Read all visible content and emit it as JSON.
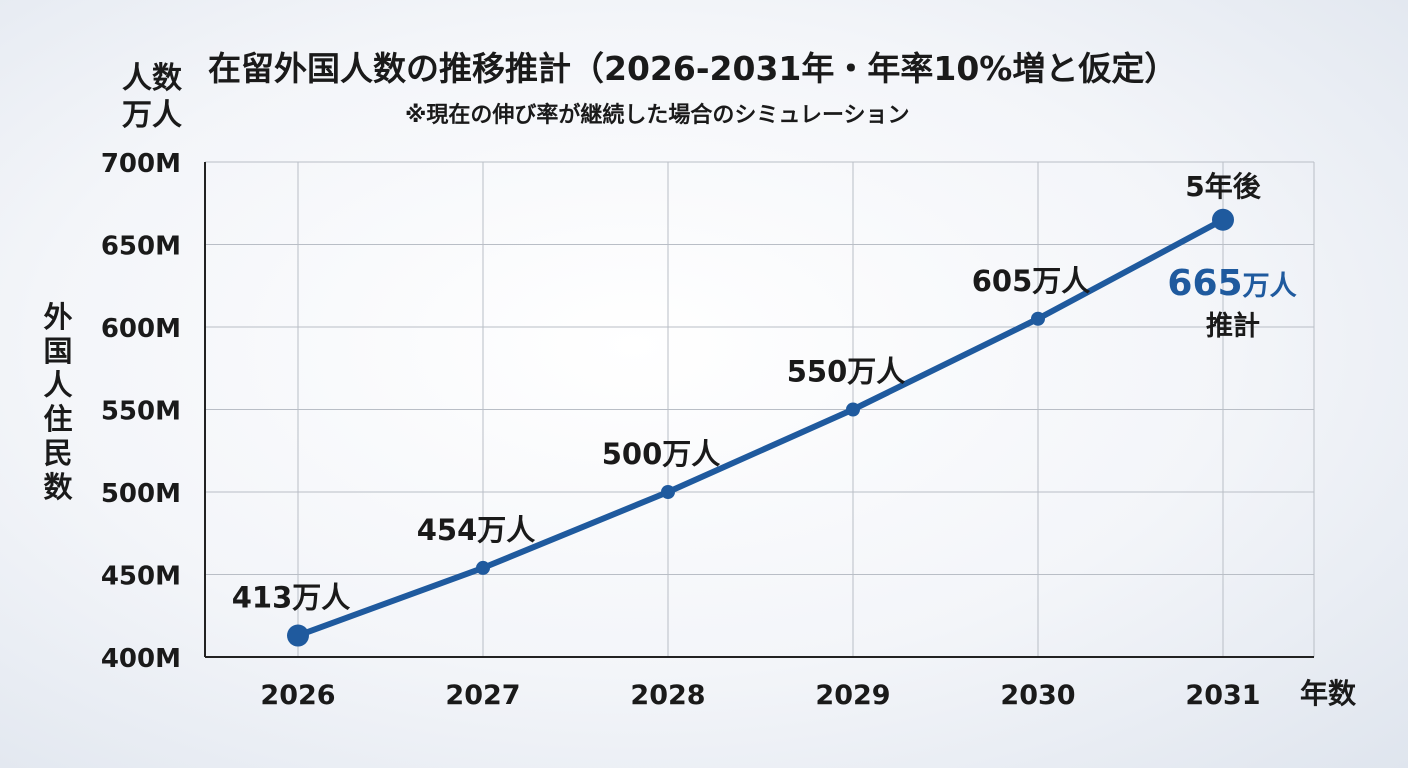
{
  "chart_data": {
    "type": "line",
    "title": "在留外国人数の推移推計（2026-2031年・年率10%増と仮定）",
    "subtitle": "※現在の伸び率が継続した場合のシミュレーション",
    "y_unit_label_line1": "人数",
    "y_unit_label_line2": "万人",
    "ylabel": "外国人住民数",
    "xlabel": "年数",
    "ylim": [
      400,
      700
    ],
    "y_ticks": [
      400,
      450,
      500,
      550,
      600,
      650,
      700
    ],
    "y_tick_labels": [
      "400M",
      "450M",
      "500M",
      "550M",
      "600M",
      "650M",
      "700M"
    ],
    "categories": [
      "2026",
      "2027",
      "2028",
      "2029",
      "2030",
      "2031"
    ],
    "series": [
      {
        "values": [
          413,
          454,
          500,
          550,
          605,
          665
        ],
        "color": "#1f5a9e"
      }
    ],
    "data_labels": [
      "413万人",
      "454万人",
      "500万人",
      "550万人",
      "605万人",
      ""
    ],
    "final_annotation": {
      "top": "5年後",
      "value": "665",
      "unit": "万人",
      "note": "推計",
      "color": "#1f5a9e"
    },
    "grid": true
  }
}
